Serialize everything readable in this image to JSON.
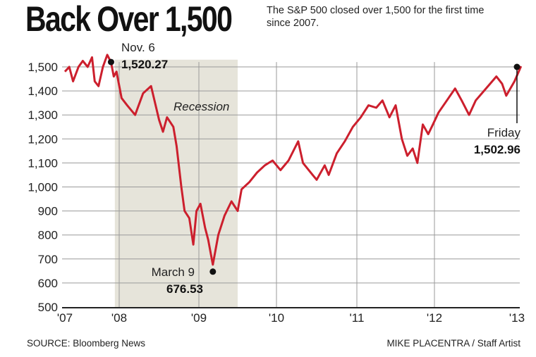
{
  "chart_data": {
    "type": "line",
    "title": "Back Over 1,500",
    "subtitle": "The S&P 500 closed over 1,500 for the first time since 2007.",
    "xlabel": "",
    "ylabel": "",
    "ylim": [
      500,
      1550
    ],
    "xlim": [
      2007,
      2013.05
    ],
    "y_ticks": [
      "1,500",
      "1,400",
      "1,300",
      "1,200",
      "1,100",
      "1,000",
      "900",
      "800",
      "700",
      "600",
      "500"
    ],
    "y_tick_values": [
      1500,
      1400,
      1300,
      1200,
      1100,
      1000,
      900,
      800,
      700,
      600,
      500
    ],
    "x_ticks": [
      "'07",
      "'08",
      "'09",
      "'10",
      "'11",
      "'12",
      "'13"
    ],
    "x_tick_values": [
      2007,
      2008,
      2009,
      2010,
      2011,
      2012,
      2013
    ],
    "grid": true,
    "shaded_region": {
      "label": "Recession",
      "from": 2007.92,
      "to": 2009.5
    },
    "series": [
      {
        "name": "S&P 500",
        "color": "#cc1f2d",
        "points": [
          [
            2007.0,
            1480
          ],
          [
            2007.08,
            1500
          ],
          [
            2007.15,
            1440
          ],
          [
            2007.25,
            1500
          ],
          [
            2007.33,
            1525
          ],
          [
            2007.42,
            1500
          ],
          [
            2007.5,
            1540
          ],
          [
            2007.55,
            1440
          ],
          [
            2007.62,
            1420
          ],
          [
            2007.7,
            1500
          ],
          [
            2007.78,
            1550
          ],
          [
            2007.85,
            1520
          ],
          [
            2007.9,
            1460
          ],
          [
            2007.95,
            1480
          ],
          [
            2008.03,
            1370
          ],
          [
            2008.1,
            1340
          ],
          [
            2008.2,
            1300
          ],
          [
            2008.3,
            1390
          ],
          [
            2008.4,
            1420
          ],
          [
            2008.5,
            1280
          ],
          [
            2008.55,
            1230
          ],
          [
            2008.6,
            1290
          ],
          [
            2008.68,
            1250
          ],
          [
            2008.72,
            1170
          ],
          [
            2008.78,
            1000
          ],
          [
            2008.82,
            900
          ],
          [
            2008.88,
            870
          ],
          [
            2008.93,
            760
          ],
          [
            2008.97,
            900
          ],
          [
            2009.02,
            930
          ],
          [
            2009.08,
            830
          ],
          [
            2009.12,
            780
          ],
          [
            2009.18,
            676.53
          ],
          [
            2009.25,
            800
          ],
          [
            2009.33,
            880
          ],
          [
            2009.42,
            940
          ],
          [
            2009.5,
            900
          ],
          [
            2009.55,
            990
          ],
          [
            2009.65,
            1020
          ],
          [
            2009.75,
            1060
          ],
          [
            2009.85,
            1090
          ],
          [
            2009.95,
            1110
          ],
          [
            2010.05,
            1070
          ],
          [
            2010.15,
            1110
          ],
          [
            2010.27,
            1190
          ],
          [
            2010.33,
            1100
          ],
          [
            2010.45,
            1050
          ],
          [
            2010.5,
            1030
          ],
          [
            2010.6,
            1090
          ],
          [
            2010.65,
            1050
          ],
          [
            2010.75,
            1140
          ],
          [
            2010.85,
            1190
          ],
          [
            2010.95,
            1250
          ],
          [
            2011.05,
            1290
          ],
          [
            2011.15,
            1340
          ],
          [
            2011.25,
            1330
          ],
          [
            2011.33,
            1360
          ],
          [
            2011.42,
            1290
          ],
          [
            2011.5,
            1340
          ],
          [
            2011.58,
            1200
          ],
          [
            2011.65,
            1130
          ],
          [
            2011.72,
            1160
          ],
          [
            2011.78,
            1100
          ],
          [
            2011.85,
            1260
          ],
          [
            2011.92,
            1220
          ],
          [
            2011.98,
            1260
          ],
          [
            2012.05,
            1310
          ],
          [
            2012.15,
            1360
          ],
          [
            2012.25,
            1410
          ],
          [
            2012.33,
            1360
          ],
          [
            2012.42,
            1300
          ],
          [
            2012.5,
            1360
          ],
          [
            2012.6,
            1400
          ],
          [
            2012.7,
            1440
          ],
          [
            2012.75,
            1460
          ],
          [
            2012.82,
            1430
          ],
          [
            2012.87,
            1380
          ],
          [
            2012.92,
            1410
          ],
          [
            2012.97,
            1440
          ],
          [
            2013.05,
            1502.96
          ]
        ]
      }
    ],
    "annotations": [
      {
        "label": "Nov. 6",
        "value_label": "1,520.27",
        "x": 2007.85,
        "y": 1520.27
      },
      {
        "label": "March 9",
        "value_label": "676.53",
        "x": 2009.18,
        "y": 676.53
      },
      {
        "label": "Friday",
        "value_label": "1,502.96",
        "x": 2013.05,
        "y": 1502.96
      }
    ]
  },
  "footer": {
    "source": "SOURCE: Bloomberg News",
    "credit": "MIKE PLACENTRA / Staff Artist"
  }
}
